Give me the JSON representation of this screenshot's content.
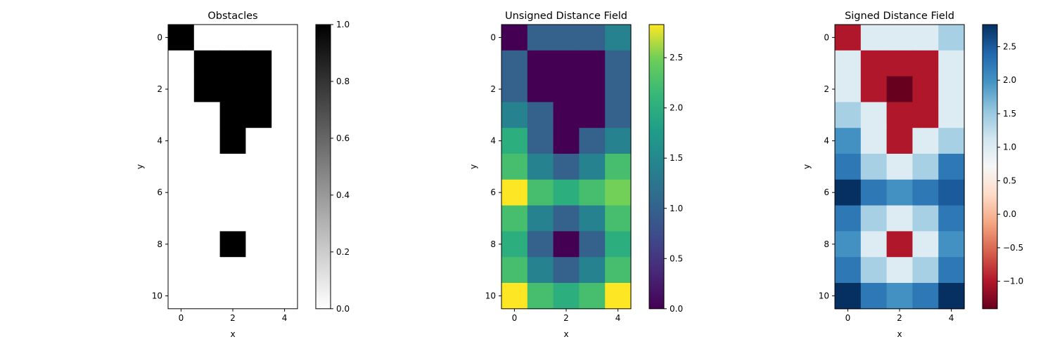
{
  "chart_data": [
    {
      "type": "heatmap",
      "title": "Obstacles",
      "xlabel": "x",
      "ylabel": "y",
      "x_ticks": [
        0,
        2,
        4
      ],
      "y_ticks": [
        0,
        2,
        4,
        6,
        8,
        10
      ],
      "colormap": "gray_r",
      "vmin": 0,
      "vmax": 1,
      "colorbar_ticks": [
        "0.0",
        "0.2",
        "0.4",
        "0.6",
        "0.8",
        "1.0"
      ],
      "grid": [
        [
          1,
          0,
          0,
          0,
          0
        ],
        [
          0,
          1,
          1,
          1,
          0
        ],
        [
          0,
          1,
          1,
          1,
          0
        ],
        [
          0,
          0,
          1,
          1,
          0
        ],
        [
          0,
          0,
          1,
          0,
          0
        ],
        [
          0,
          0,
          0,
          0,
          0
        ],
        [
          0,
          0,
          0,
          0,
          0
        ],
        [
          0,
          0,
          0,
          0,
          0
        ],
        [
          0,
          0,
          1,
          0,
          0
        ],
        [
          0,
          0,
          0,
          0,
          0
        ],
        [
          0,
          0,
          0,
          0,
          0
        ]
      ]
    },
    {
      "type": "heatmap",
      "title": "Unsigned Distance Field",
      "xlabel": "x",
      "ylabel": "y",
      "x_ticks": [
        0,
        2,
        4
      ],
      "y_ticks": [
        0,
        2,
        4,
        6,
        8,
        10
      ],
      "colormap": "viridis",
      "vmin": 0,
      "vmax": 2.83,
      "colorbar_ticks": [
        "0.0",
        "0.5",
        "1.0",
        "1.5",
        "2.0",
        "2.5"
      ],
      "grid": [
        [
          0,
          1,
          1,
          1,
          1.41
        ],
        [
          1,
          0,
          0,
          0,
          1
        ],
        [
          1,
          0,
          0,
          0,
          1
        ],
        [
          1.41,
          1,
          0,
          0,
          1
        ],
        [
          2,
          1,
          0,
          1,
          1.41
        ],
        [
          2.24,
          1.41,
          1,
          1.41,
          2.24
        ],
        [
          2.83,
          2.24,
          2,
          2.24,
          2.5
        ],
        [
          2.24,
          1.41,
          1,
          1.41,
          2.24
        ],
        [
          2,
          1,
          0,
          1,
          2
        ],
        [
          2.24,
          1.41,
          1,
          1.41,
          2.24
        ],
        [
          2.83,
          2.24,
          2,
          2.24,
          2.83
        ]
      ]
    },
    {
      "type": "heatmap",
      "title": "Signed Distance Field",
      "xlabel": "x",
      "ylabel": "y",
      "x_ticks": [
        0,
        2,
        4
      ],
      "y_ticks": [
        0,
        2,
        4,
        6,
        8,
        10
      ],
      "colormap": "RdBu",
      "vmin": -1.41,
      "vmax": 2.83,
      "colorbar_ticks": [
        "−1.0",
        "−0.5",
        "0.0",
        "0.5",
        "1.0",
        "1.5",
        "2.0",
        "2.5"
      ],
      "grid": [
        [
          -1,
          1,
          1,
          1,
          1.41
        ],
        [
          1,
          -1,
          -1,
          -1,
          1
        ],
        [
          1,
          -1,
          -1.41,
          -1,
          1
        ],
        [
          1.41,
          1,
          -1,
          -1,
          1
        ],
        [
          2,
          1,
          -1,
          1,
          1.41
        ],
        [
          2.24,
          1.41,
          1,
          1.41,
          2.24
        ],
        [
          2.83,
          2.24,
          2,
          2.24,
          2.5
        ],
        [
          2.24,
          1.41,
          1,
          1.41,
          2.24
        ],
        [
          2,
          1,
          -1,
          1,
          2
        ],
        [
          2.24,
          1.41,
          1,
          1.41,
          2.24
        ],
        [
          2.83,
          2.24,
          2,
          2.24,
          2.83
        ]
      ]
    }
  ]
}
